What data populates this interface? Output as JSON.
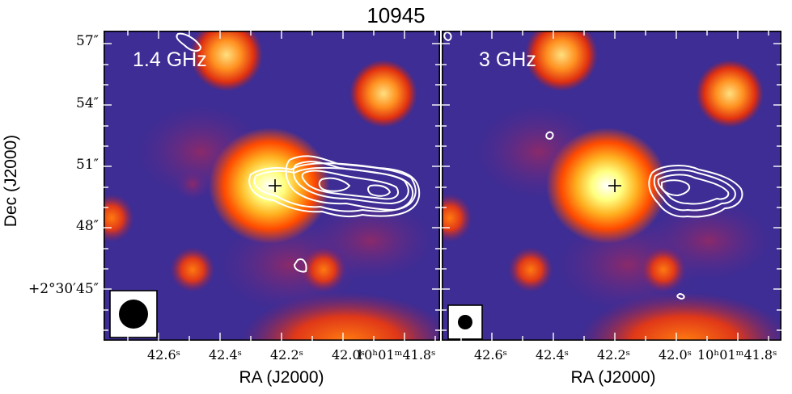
{
  "figure": {
    "title": "10945",
    "y_axis_label": "Dec (J2000)",
    "y_ticks": [
      "57″",
      "54″",
      "51″",
      "48″",
      "+2°30′45″"
    ],
    "x_axis_label": "RA (J2000)",
    "x_ticks": [
      "42.6ˢ",
      "42.4ˢ",
      "42.2ˢ",
      "42.0ˢ",
      "10ʰ01ᵐ41.8ˢ"
    ]
  },
  "panels": [
    {
      "label": "1.4 GHz",
      "beam": "large"
    },
    {
      "label": "3 GHz",
      "beam": "small"
    }
  ],
  "colors": {
    "background": "#3b2a8c",
    "hot_source": "#ffffff",
    "contour": "#ffffff"
  }
}
